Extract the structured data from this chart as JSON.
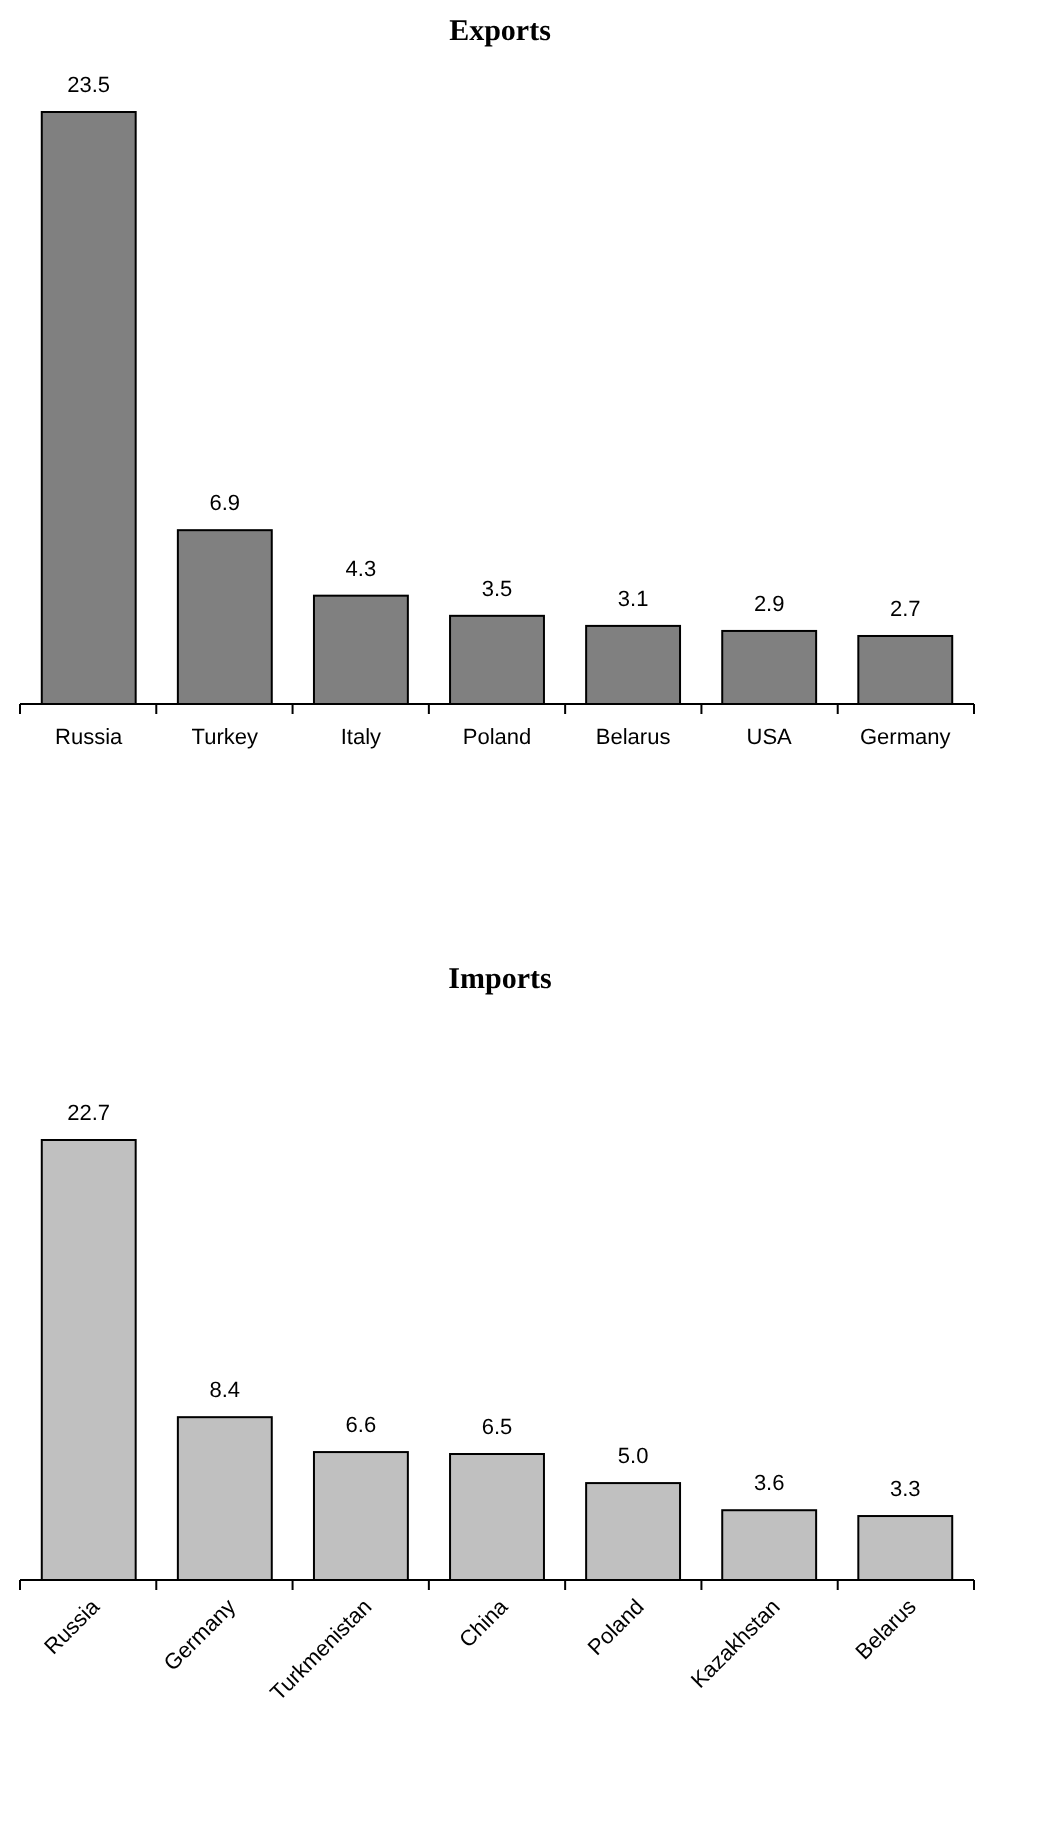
{
  "chart_data": [
    {
      "type": "bar",
      "title": "Exports",
      "categories": [
        "Russia",
        "Turkey",
        "Italy",
        "Poland",
        "Belarus",
        "USA",
        "Germany"
      ],
      "values": [
        23.5,
        6.9,
        4.3,
        3.5,
        3.1,
        2.9,
        2.7
      ],
      "color": "#808080",
      "data_labels": true
    },
    {
      "type": "bar",
      "title": "Imports",
      "categories": [
        "Russia",
        "Germany",
        "Turkmenistan",
        "China",
        "Poland",
        "Kazakhstan",
        "Belarus"
      ],
      "values": [
        22.7,
        8.4,
        6.6,
        6.5,
        5.0,
        3.6,
        3.3
      ],
      "color": "#c0c0c0",
      "data_labels": true,
      "value_labels": [
        "22.7",
        "8.4",
        "6.6",
        "6.5",
        "5.0",
        "3.6",
        "3.3"
      ]
    }
  ]
}
